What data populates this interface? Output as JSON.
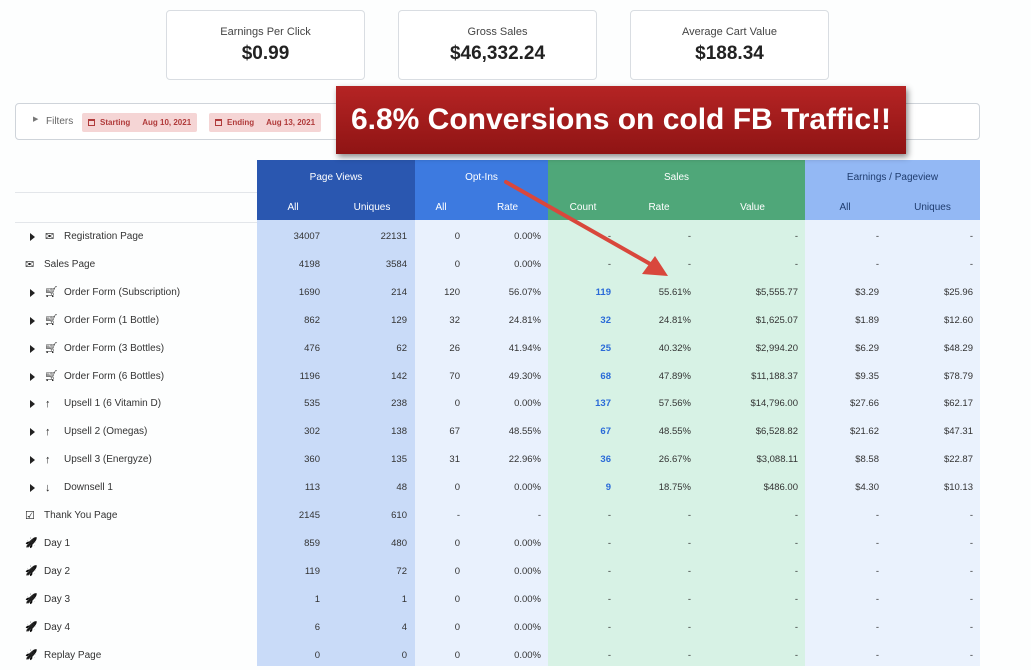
{
  "stats": [
    {
      "label": "Earnings Per Click",
      "value": "$0.99"
    },
    {
      "label": "Gross Sales",
      "value": "$46,332.24"
    },
    {
      "label": "Average Cart Value",
      "value": "$188.34"
    }
  ],
  "filters": {
    "label": "Filters",
    "starting_label": "Starting",
    "starting_date": "Aug 10, 2021",
    "ending_label": "Ending",
    "ending_date": "Aug 13, 2021"
  },
  "banner": "6.8% Conversions on cold FB Traffic!!",
  "table": {
    "groups": [
      "Page Views",
      "Opt-Ins",
      "Sales",
      "Earnings / Pageview"
    ],
    "subheaders": [
      "All",
      "Uniques",
      "All",
      "Rate",
      "Count",
      "Rate",
      "Value",
      "All",
      "Uniques"
    ],
    "rows": [
      {
        "name": "Registration Page",
        "icon": "envelope-icon",
        "expand": true,
        "values": [
          "34007",
          "22131",
          "0",
          "0.00%",
          "-",
          "-",
          "-",
          "-",
          "-"
        ]
      },
      {
        "name": "Sales Page",
        "icon": "envelope-icon",
        "expand": false,
        "values": [
          "4198",
          "3584",
          "0",
          "0.00%",
          "-",
          "-",
          "-",
          "-",
          "-"
        ]
      },
      {
        "name": "Order Form (Subscription)",
        "icon": "cart-icon",
        "expand": true,
        "values": [
          "1690",
          "214",
          "120",
          "56.07%",
          "119",
          "55.61%",
          "$5,555.77",
          "$3.29",
          "$25.96"
        ]
      },
      {
        "name": "Order Form (1 Bottle)",
        "icon": "cart-icon",
        "expand": true,
        "values": [
          "862",
          "129",
          "32",
          "24.81%",
          "32",
          "24.81%",
          "$1,625.07",
          "$1.89",
          "$12.60"
        ]
      },
      {
        "name": "Order Form (3 Bottles)",
        "icon": "cart-icon",
        "expand": true,
        "values": [
          "476",
          "62",
          "26",
          "41.94%",
          "25",
          "40.32%",
          "$2,994.20",
          "$6.29",
          "$48.29"
        ]
      },
      {
        "name": "Order Form (6 Bottles)",
        "icon": "cart-icon",
        "expand": true,
        "values": [
          "1196",
          "142",
          "70",
          "49.30%",
          "68",
          "47.89%",
          "$11,188.37",
          "$9.35",
          "$78.79"
        ]
      },
      {
        "name": "Upsell 1 (6 Vitamin D)",
        "icon": "arrow-up-icon",
        "expand": true,
        "values": [
          "535",
          "238",
          "0",
          "0.00%",
          "137",
          "57.56%",
          "$14,796.00",
          "$27.66",
          "$62.17"
        ]
      },
      {
        "name": "Upsell 2 (Omegas)",
        "icon": "arrow-up-icon",
        "expand": true,
        "values": [
          "302",
          "138",
          "67",
          "48.55%",
          "67",
          "48.55%",
          "$6,528.82",
          "$21.62",
          "$47.31"
        ]
      },
      {
        "name": "Upsell 3 (Energyze)",
        "icon": "arrow-up-icon",
        "expand": true,
        "values": [
          "360",
          "135",
          "31",
          "22.96%",
          "36",
          "26.67%",
          "$3,088.11",
          "$8.58",
          "$22.87"
        ]
      },
      {
        "name": "Downsell 1",
        "icon": "arrow-down-icon",
        "expand": true,
        "values": [
          "113",
          "48",
          "0",
          "0.00%",
          "9",
          "18.75%",
          "$486.00",
          "$4.30",
          "$10.13"
        ]
      },
      {
        "name": "Thank You Page",
        "icon": "checkbox-icon",
        "expand": false,
        "values": [
          "2145",
          "610",
          "-",
          "-",
          "-",
          "-",
          "-",
          "-",
          "-"
        ]
      },
      {
        "name": "Day 1",
        "icon": "rocket-icon",
        "expand": false,
        "values": [
          "859",
          "480",
          "0",
          "0.00%",
          "-",
          "-",
          "-",
          "-",
          "-"
        ]
      },
      {
        "name": "Day 2",
        "icon": "rocket-icon",
        "expand": false,
        "values": [
          "119",
          "72",
          "0",
          "0.00%",
          "-",
          "-",
          "-",
          "-",
          "-"
        ]
      },
      {
        "name": "Day 3",
        "icon": "rocket-icon",
        "expand": false,
        "values": [
          "1",
          "1",
          "0",
          "0.00%",
          "-",
          "-",
          "-",
          "-",
          "-"
        ]
      },
      {
        "name": "Day 4",
        "icon": "rocket-icon",
        "expand": false,
        "values": [
          "6",
          "4",
          "0",
          "0.00%",
          "-",
          "-",
          "-",
          "-",
          "-"
        ]
      },
      {
        "name": "Replay Page",
        "icon": "rocket-icon",
        "expand": false,
        "values": [
          "0",
          "0",
          "0",
          "0.00%",
          "-",
          "-",
          "-",
          "-",
          "-"
        ]
      }
    ]
  },
  "colors": {
    "page_views_header": "#2a57b0",
    "page_views_bg": "#c9dbf8",
    "optins_header": "#3d7ae0",
    "optins_bg": "#e9f1fd",
    "sales_header": "#4fa779",
    "sales_bg": "#d7f2e5",
    "earnings_header": "#93b8f4",
    "earnings_bg": "#eaf2fd",
    "banner": "#9e1818",
    "arrow": "#d9473c"
  }
}
